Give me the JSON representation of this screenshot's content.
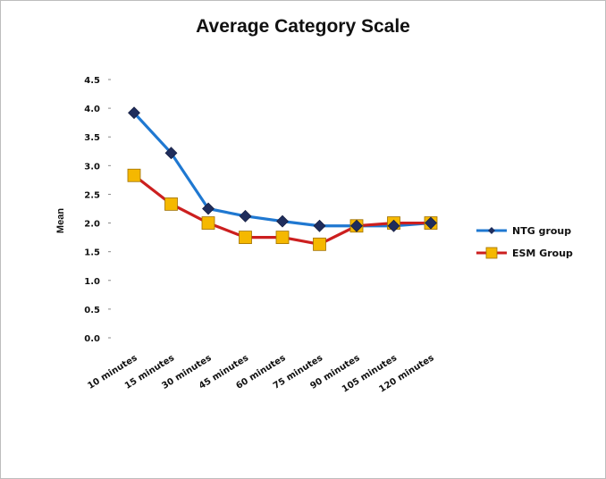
{
  "chart_data": {
    "type": "line",
    "title": "Average Category Scale",
    "xlabel": "",
    "ylabel": "Mean",
    "ylim": [
      0,
      4.5
    ],
    "yticks": [
      "0.0",
      "0.5",
      "1.0",
      "1.5",
      "2.0",
      "2.5",
      "3.0",
      "3.5",
      "4.0",
      "4.5"
    ],
    "grid": false,
    "legend_position": "right",
    "categories": [
      "10 minutes",
      "15 minutes",
      "30 minutes",
      "45 minutes",
      "60 minutes",
      "75 minutes",
      "90 minutes",
      "105 minutes",
      "120 minutes"
    ],
    "series": [
      {
        "name": "NTG group",
        "values": [
          3.92,
          3.22,
          2.25,
          2.12,
          2.03,
          1.95,
          1.95,
          1.95,
          2.0
        ],
        "color": "#1f78d1",
        "marker": "diamond",
        "marker_color": "#1f2d5c"
      },
      {
        "name": "ESM Group",
        "values": [
          2.83,
          2.33,
          2.0,
          1.75,
          1.75,
          1.63,
          1.95,
          2.0,
          2.0
        ],
        "color": "#cc1f1f",
        "marker": "square",
        "marker_color": "#f5b800"
      }
    ]
  }
}
